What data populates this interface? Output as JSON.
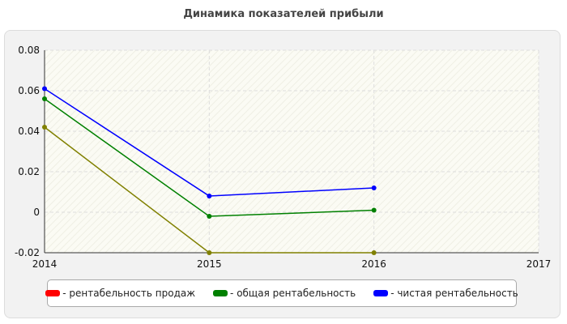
{
  "chart_data": {
    "type": "line",
    "title": "Динамика показателей прибыли",
    "x": [
      2014,
      2015,
      2016
    ],
    "x_ticks": [
      "2014",
      "2015",
      "2016",
      "2017"
    ],
    "xlim": [
      2014,
      2017
    ],
    "y_ticks": [
      "0.08",
      "0.06",
      "0.04",
      "0.02",
      "0",
      "-0.02"
    ],
    "ylim": [
      -0.02,
      0.08
    ],
    "grid": true,
    "legend_position": "bottom",
    "series": [
      {
        "name": "- рентабельность продаж",
        "color": "#808000",
        "legend_color": "#ff0000",
        "values": [
          0.042,
          -0.02,
          -0.02
        ]
      },
      {
        "name": "- общая рентабельность",
        "color": "#008000",
        "legend_color": "#008000",
        "values": [
          0.056,
          -0.002,
          0.001
        ]
      },
      {
        "name": "- чистая рентабельность",
        "color": "#0000ff",
        "legend_color": "#0000ff",
        "values": [
          0.061,
          0.008,
          0.012
        ]
      }
    ]
  }
}
